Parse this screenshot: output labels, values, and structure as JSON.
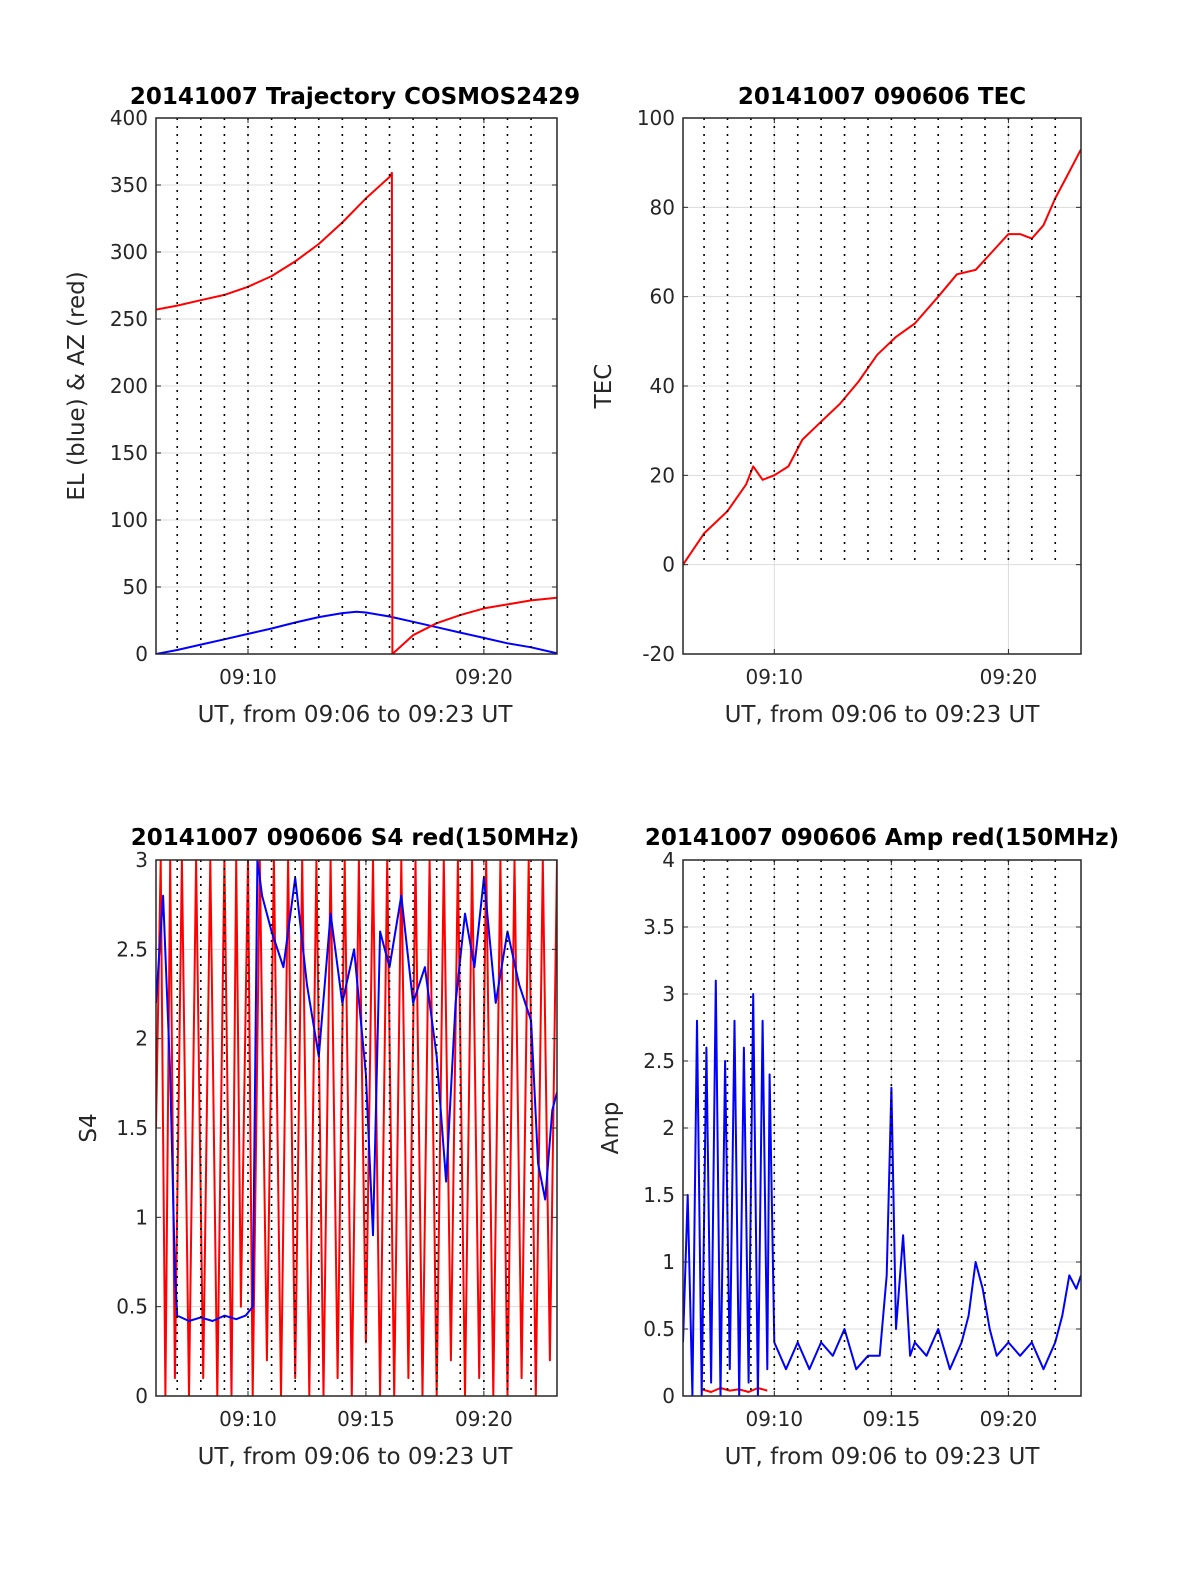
{
  "chart_data": [
    {
      "type": "line",
      "title": "20141007 Trajectory COSMOS2429",
      "xlabel": "UT, from 09:06 to 09:23 UT",
      "ylabel": "EL (blue) & AZ (red)",
      "xlim": [
        6.1,
        23.1
      ],
      "ylim": [
        0,
        400
      ],
      "xticks": [
        10,
        20
      ],
      "xtick_labels": [
        "09:10",
        "09:20"
      ],
      "yticks": [
        0,
        50,
        100,
        150,
        200,
        250,
        300,
        350,
        400
      ],
      "ytick_labels": [
        "0",
        "50",
        "100",
        "150",
        "200",
        "250",
        "300",
        "350",
        "400"
      ],
      "grid": true,
      "legend": "none",
      "minute_markers": [
        7,
        8,
        9,
        10,
        11,
        12,
        13,
        14,
        15,
        16,
        17,
        18,
        19,
        20,
        21,
        22
      ],
      "series": [
        {
          "color": "#0000ff",
          "x": [
            6.1,
            7,
            8,
            9,
            10,
            11,
            12,
            13,
            14,
            14.6,
            15,
            16,
            17,
            18,
            19,
            20,
            21,
            22,
            23.1
          ],
          "y": [
            0,
            3,
            7,
            11,
            15,
            19,
            23.5,
            27.5,
            30.5,
            31.5,
            31,
            28,
            24,
            20,
            16,
            12,
            8,
            5,
            0.5
          ]
        },
        {
          "color": "#ff0000",
          "x": [
            6.1,
            7,
            8,
            9,
            10,
            11,
            12,
            13,
            14,
            15,
            16,
            16.1,
            16.12,
            17,
            18,
            19,
            20,
            21,
            22,
            23.1
          ],
          "y": [
            257,
            260,
            264,
            268,
            274,
            282,
            293,
            306,
            322,
            340,
            356,
            359,
            0,
            14,
            23,
            29,
            34,
            37,
            40,
            42
          ]
        }
      ]
    },
    {
      "type": "line",
      "title": "20141007 090606 TEC",
      "xlabel": "UT, from 09:06 to 09:23 UT",
      "ylabel": "TEC",
      "xlim": [
        6.1,
        23.1
      ],
      "ylim": [
        -20,
        100
      ],
      "xticks": [
        10,
        20
      ],
      "xtick_labels": [
        "09:10",
        "09:20"
      ],
      "yticks": [
        -20,
        0,
        20,
        40,
        60,
        80,
        100
      ],
      "ytick_labels": [
        "-20",
        "0",
        "20",
        "40",
        "60",
        "80",
        "100"
      ],
      "grid": true,
      "legend": "none",
      "minute_markers": [
        7,
        8,
        9,
        10,
        11,
        12,
        13,
        14,
        15,
        16,
        17,
        18,
        19,
        20,
        21,
        22
      ],
      "series": [
        {
          "color": "#ff0000",
          "x": [
            6.1,
            7,
            8,
            8.8,
            9.1,
            9.5,
            10,
            10.6,
            11.2,
            12,
            12.8,
            13.6,
            14.4,
            15.2,
            16,
            17,
            17.8,
            18.6,
            19.3,
            20,
            20.5,
            21,
            21.5,
            22,
            22.5,
            23.1
          ],
          "y": [
            0,
            7,
            12,
            18,
            22,
            19,
            20,
            22,
            28,
            32,
            36,
            41,
            47,
            51,
            54,
            60,
            65,
            66,
            70,
            74,
            74,
            73,
            76,
            82,
            87,
            93
          ]
        }
      ]
    },
    {
      "type": "line",
      "title": "20141007 090606 S4 red(150MHz)",
      "xlabel": "UT, from 09:06 to 09:23 UT",
      "ylabel": "S4",
      "xlim": [
        6.1,
        23.1
      ],
      "ylim": [
        0,
        3
      ],
      "xticks": [
        10,
        15,
        20
      ],
      "xtick_labels": [
        "09:10",
        "09:15",
        "09:20"
      ],
      "yticks": [
        0,
        0.5,
        1,
        1.5,
        2,
        2.5,
        3
      ],
      "ytick_labels": [
        "0",
        "0.5",
        "1",
        "1.5",
        "2",
        "2.5",
        "3"
      ],
      "grid": true,
      "legend": "none",
      "minute_markers": [
        7,
        8,
        9,
        10,
        11,
        12,
        13,
        14,
        15,
        16,
        17,
        18,
        19,
        20,
        21,
        22
      ],
      "series": [
        {
          "color": "#ff0000",
          "x": [
            6.1,
            6.3,
            6.5,
            6.7,
            6.9,
            7.2,
            7.5,
            7.8,
            8.1,
            8.4,
            8.7,
            9,
            9.3,
            9.5,
            9.7,
            10,
            10.2,
            10.5,
            10.8,
            11.1,
            11.4,
            11.7,
            12,
            12.3,
            12.6,
            12.9,
            13.2,
            13.5,
            13.8,
            14.1,
            14.4,
            14.7,
            15,
            15.3,
            15.6,
            15.9,
            16.2,
            16.5,
            16.8,
            17.1,
            17.4,
            17.7,
            18,
            18.3,
            18.6,
            18.9,
            19.2,
            19.5,
            19.8,
            20.1,
            20.4,
            20.7,
            21,
            21.3,
            21.6,
            21.9,
            22.2,
            22.5,
            22.8,
            23.1
          ],
          "y": [
            1.5,
            3,
            0,
            3,
            0.1,
            3,
            0,
            3,
            0.1,
            3,
            0,
            3,
            0,
            3,
            0.5,
            3,
            0,
            3,
            0.2,
            3,
            0,
            3,
            0.1,
            3,
            0,
            3,
            0,
            3,
            0.1,
            3,
            0,
            3,
            0.3,
            3,
            0,
            3,
            0,
            3,
            0.1,
            3,
            0,
            3,
            0,
            3,
            0.2,
            3,
            0,
            3,
            0.1,
            3,
            0,
            3,
            0,
            3,
            0.1,
            3,
            0,
            3,
            0.2,
            3
          ]
        },
        {
          "color": "#0000ff",
          "x": [
            6.1,
            6.4,
            6.7,
            6.9,
            7,
            7.5,
            8,
            8.5,
            9,
            9.5,
            9.9,
            10.2,
            10.4,
            10.6,
            11,
            11.5,
            12,
            12.5,
            13,
            13.5,
            14,
            14.5,
            15,
            15.3,
            15.6,
            16,
            16.5,
            17,
            17.5,
            18,
            18.4,
            18.8,
            19.2,
            19.6,
            20,
            20.5,
            21,
            21.5,
            22,
            22.3,
            22.6,
            22.9,
            23.1
          ],
          "y": [
            2.2,
            2.8,
            1.8,
            0.7,
            0.45,
            0.42,
            0.44,
            0.42,
            0.45,
            0.43,
            0.45,
            0.5,
            3,
            2.8,
            2.6,
            2.4,
            2.9,
            2.3,
            1.9,
            2.7,
            2.2,
            2.5,
            1.8,
            0.9,
            2.6,
            2.4,
            2.8,
            2.2,
            2.4,
            1.9,
            1.2,
            2.2,
            2.7,
            2.4,
            2.9,
            2.2,
            2.6,
            2.3,
            2.1,
            1.3,
            1.1,
            1.6,
            1.7
          ]
        }
      ]
    },
    {
      "type": "line",
      "title": "20141007 090606 Amp red(150MHz)",
      "xlabel": "UT, from 09:06 to 09:23 UT",
      "ylabel": "Amp",
      "xlim": [
        6.1,
        23.1
      ],
      "ylim": [
        0,
        4
      ],
      "xticks": [
        10,
        15,
        20
      ],
      "xtick_labels": [
        "09:10",
        "09:15",
        "09:20"
      ],
      "yticks": [
        0,
        0.5,
        1,
        1.5,
        2,
        2.5,
        3,
        3.5,
        4
      ],
      "ytick_labels": [
        "0",
        "0.5",
        "1",
        "1.5",
        "2",
        "2.5",
        "3",
        "3.5",
        "4"
      ],
      "grid": true,
      "legend": "none",
      "minute_markers": [
        7,
        8,
        9,
        10,
        11,
        12,
        13,
        14,
        15,
        16,
        17,
        18,
        19,
        20,
        21,
        22
      ],
      "series": [
        {
          "color": "#ff0000",
          "x": [
            6.9,
            7.3,
            7.7,
            8.1,
            8.5,
            8.9,
            9.3,
            9.7
          ],
          "y": [
            0.05,
            0.03,
            0.06,
            0.04,
            0.05,
            0.03,
            0.06,
            0.04
          ]
        },
        {
          "color": "#0000ff",
          "x": [
            6.1,
            6.3,
            6.5,
            6.7,
            6.9,
            7.1,
            7.3,
            7.5,
            7.7,
            7.9,
            8.1,
            8.3,
            8.5,
            8.7,
            8.9,
            9.1,
            9.3,
            9.5,
            9.7,
            9.8,
            10,
            10.5,
            11,
            11.5,
            12,
            12.5,
            13,
            13.5,
            14,
            14.5,
            14.8,
            15,
            15.2,
            15.5,
            15.8,
            16,
            16.5,
            17,
            17.5,
            18,
            18.3,
            18.6,
            18.9,
            19.2,
            19.5,
            20,
            20.5,
            21,
            21.5,
            22,
            22.3,
            22.6,
            22.9,
            23.1
          ],
          "y": [
            0.4,
            1.5,
            0,
            2.8,
            0,
            2.6,
            0.1,
            3.1,
            0,
            2.5,
            0.2,
            2.8,
            0,
            2.6,
            0.1,
            3,
            0,
            2.8,
            0.2,
            2.4,
            0.4,
            0.2,
            0.4,
            0.2,
            0.4,
            0.3,
            0.5,
            0.2,
            0.3,
            0.3,
            0.9,
            2.3,
            0.5,
            1.2,
            0.3,
            0.4,
            0.3,
            0.5,
            0.2,
            0.4,
            0.6,
            1.0,
            0.8,
            0.5,
            0.3,
            0.4,
            0.3,
            0.4,
            0.2,
            0.4,
            0.6,
            0.9,
            0.8,
            0.9
          ]
        }
      ]
    }
  ]
}
